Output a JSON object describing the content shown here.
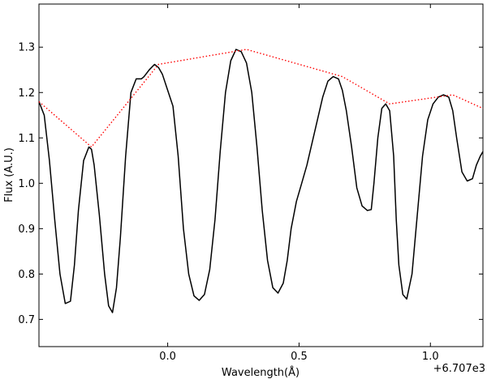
{
  "chart_data": {
    "type": "line",
    "xlabel": "Wavelength(Å)",
    "ylabel": "Flux (A.U.)",
    "x_offset_label": "+6.707e3",
    "xlim": [
      -0.49,
      1.2
    ],
    "ylim": [
      0.64,
      1.395
    ],
    "x_ticks": [
      {
        "value": 0.0,
        "label": "0.0"
      },
      {
        "value": 0.5,
        "label": "0.5"
      },
      {
        "value": 1.0,
        "label": "1.0"
      }
    ],
    "y_ticks": [
      {
        "value": 0.7,
        "label": "0.7"
      },
      {
        "value": 0.8,
        "label": "0.8"
      },
      {
        "value": 0.9,
        "label": "0.9"
      },
      {
        "value": 1.0,
        "label": "1.0"
      },
      {
        "value": 1.1,
        "label": "1.1"
      },
      {
        "value": 1.2,
        "label": "1.2"
      },
      {
        "value": 1.3,
        "label": "1.3"
      }
    ],
    "grid": false,
    "legend": "none",
    "series": [
      {
        "style": "solid",
        "color": "#000000",
        "x": [
          -0.49,
          -0.47,
          -0.45,
          -0.43,
          -0.41,
          -0.39,
          -0.37,
          -0.355,
          -0.34,
          -0.32,
          -0.3,
          -0.29,
          -0.28,
          -0.26,
          -0.24,
          -0.225,
          -0.21,
          -0.195,
          -0.18,
          -0.16,
          -0.14,
          -0.12,
          -0.1,
          -0.09,
          -0.07,
          -0.05,
          -0.035,
          -0.02,
          0.0,
          0.02,
          0.04,
          0.06,
          0.08,
          0.1,
          0.12,
          0.14,
          0.16,
          0.18,
          0.2,
          0.22,
          0.24,
          0.26,
          0.28,
          0.3,
          0.32,
          0.34,
          0.36,
          0.38,
          0.4,
          0.42,
          0.44,
          0.455,
          0.47,
          0.49,
          0.51,
          0.53,
          0.55,
          0.57,
          0.59,
          0.61,
          0.63,
          0.65,
          0.665,
          0.68,
          0.7,
          0.72,
          0.74,
          0.76,
          0.775,
          0.785,
          0.8,
          0.815,
          0.83,
          0.845,
          0.86,
          0.87,
          0.88,
          0.895,
          0.91,
          0.93,
          0.95,
          0.97,
          0.99,
          1.01,
          1.03,
          1.05,
          1.07,
          1.085,
          1.1,
          1.12,
          1.14,
          1.16,
          1.175,
          1.19,
          1.2
        ],
        "y": [
          1.18,
          1.15,
          1.05,
          0.92,
          0.8,
          0.735,
          0.74,
          0.82,
          0.94,
          1.05,
          1.08,
          1.075,
          1.04,
          0.93,
          0.8,
          0.73,
          0.715,
          0.77,
          0.88,
          1.06,
          1.2,
          1.23,
          1.23,
          1.235,
          1.25,
          1.262,
          1.255,
          1.24,
          1.205,
          1.17,
          1.06,
          0.9,
          0.8,
          0.752,
          0.742,
          0.755,
          0.81,
          0.92,
          1.07,
          1.2,
          1.27,
          1.295,
          1.29,
          1.265,
          1.2,
          1.08,
          0.94,
          0.83,
          0.77,
          0.758,
          0.78,
          0.83,
          0.9,
          0.96,
          1.0,
          1.04,
          1.09,
          1.14,
          1.19,
          1.225,
          1.235,
          1.23,
          1.205,
          1.16,
          1.08,
          0.99,
          0.95,
          0.94,
          0.942,
          1.0,
          1.1,
          1.165,
          1.175,
          1.16,
          1.06,
          0.92,
          0.82,
          0.755,
          0.745,
          0.8,
          0.93,
          1.06,
          1.14,
          1.175,
          1.19,
          1.195,
          1.19,
          1.16,
          1.1,
          1.025,
          1.005,
          1.01,
          1.04,
          1.06,
          1.07
        ]
      },
      {
        "style": "dotted",
        "color": "#ff0000",
        "x": [
          -0.49,
          -0.29,
          -0.035,
          0.3,
          0.665,
          0.845,
          1.085,
          1.2
        ],
        "y": [
          1.18,
          1.08,
          1.262,
          1.295,
          1.235,
          1.175,
          1.195,
          1.165
        ]
      }
    ]
  }
}
